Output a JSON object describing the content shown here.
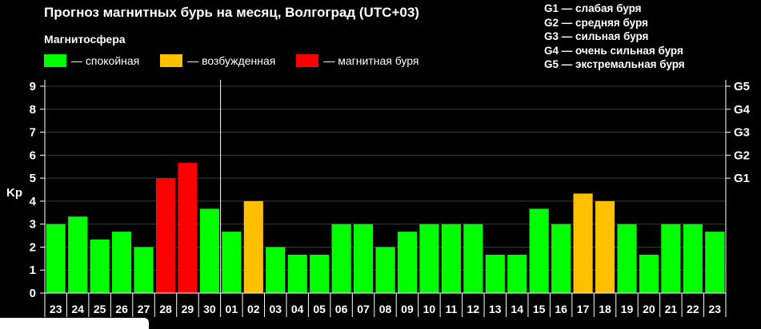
{
  "header": {
    "title": "Прогноз магнитных бурь на месяц, Волгоград (UTC+03)",
    "subtitle": "Магнитосфера"
  },
  "legend": [
    {
      "label": "— спокойная",
      "color": "#00ff00"
    },
    {
      "label": "— возбужденная",
      "color": "#ffc000"
    },
    {
      "label": "— магнитная буря",
      "color": "#ff0000"
    }
  ],
  "g_legend": [
    "G1 — слабая буря",
    "G2 — средняя буря",
    "G3 — сильная буря",
    "G4 — очень сильная буря",
    "G5 — экстремальная буря"
  ],
  "chart_data": {
    "type": "bar",
    "ylabel": "Kp",
    "ylim": [
      0,
      9
    ],
    "y_ticks": [
      "0",
      "1",
      "2",
      "3",
      "4",
      "5",
      "6",
      "7",
      "8",
      "9"
    ],
    "right_ticks": [
      {
        "value": 5,
        "label": "G1"
      },
      {
        "value": 6,
        "label": "G2"
      },
      {
        "value": 7,
        "label": "G3"
      },
      {
        "value": 8,
        "label": "G4"
      },
      {
        "value": 9,
        "label": "G5"
      }
    ],
    "grid": "horizontal",
    "month_separator_after": "30",
    "categories": [
      "23",
      "24",
      "25",
      "26",
      "27",
      "28",
      "29",
      "30",
      "01",
      "02",
      "03",
      "04",
      "05",
      "06",
      "07",
      "08",
      "09",
      "10",
      "11",
      "12",
      "13",
      "14",
      "15",
      "16",
      "17",
      "18",
      "19",
      "20",
      "21",
      "22",
      "23"
    ],
    "values": [
      3,
      3.33,
      2.33,
      2.67,
      2,
      5,
      5.67,
      3.67,
      2.67,
      4,
      2,
      1.67,
      1.67,
      3,
      3,
      2,
      2.67,
      3,
      3,
      3,
      1.67,
      1.67,
      3.67,
      3,
      4.33,
      4,
      3,
      1.67,
      3,
      3,
      2.67
    ],
    "levels": [
      "calm",
      "calm",
      "calm",
      "calm",
      "calm",
      "storm",
      "storm",
      "calm",
      "calm",
      "excited",
      "calm",
      "calm",
      "calm",
      "calm",
      "calm",
      "calm",
      "calm",
      "calm",
      "calm",
      "calm",
      "calm",
      "calm",
      "calm",
      "calm",
      "excited",
      "excited",
      "calm",
      "calm",
      "calm",
      "calm",
      "calm"
    ],
    "colors": {
      "calm": "#00ff00",
      "excited": "#ffc000",
      "storm": "#ff0000"
    }
  }
}
